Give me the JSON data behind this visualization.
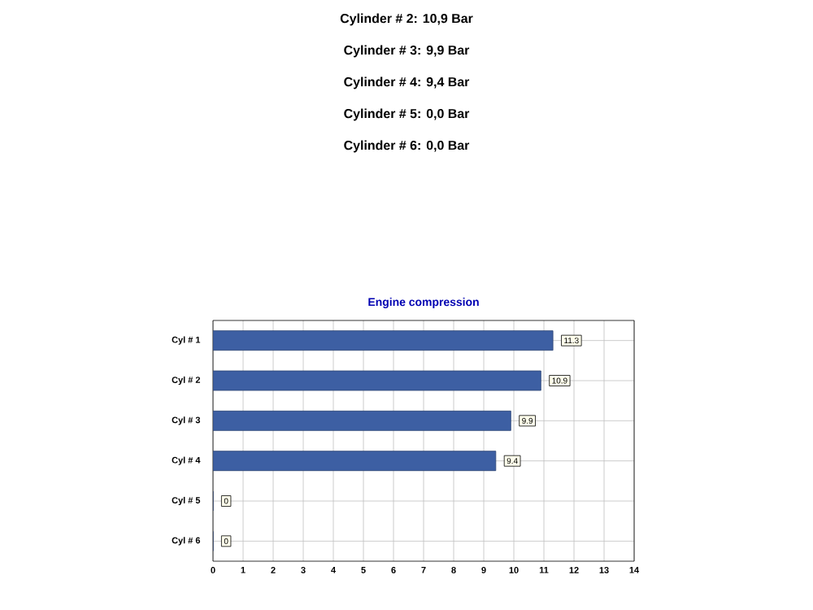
{
  "chart_data": {
    "type": "bar",
    "orientation": "horizontal",
    "title": "Engine compression",
    "categories": [
      "Cyl # 1",
      "Cyl # 2",
      "Cyl # 3",
      "Cyl # 4",
      "Cyl # 5",
      "Cyl # 6"
    ],
    "values": [
      11.3,
      10.9,
      9.9,
      9.4,
      0,
      0
    ],
    "color": "#3d5fa3",
    "xlim": [
      0,
      14
    ],
    "xticks": [
      0,
      1,
      2,
      3,
      4,
      5,
      6,
      7,
      8,
      9,
      10,
      11,
      12,
      13,
      14
    ],
    "grid": true,
    "data_labels": true,
    "annotations": [
      "Cylinder # 2: 10,9 Bar",
      "Cylinder # 3:  9,9 Bar",
      "Cylinder # 4:  9,4 Bar",
      "Cylinder # 5:  0,0 Bar",
      "Cylinder # 6:  0,0 Bar"
    ]
  }
}
